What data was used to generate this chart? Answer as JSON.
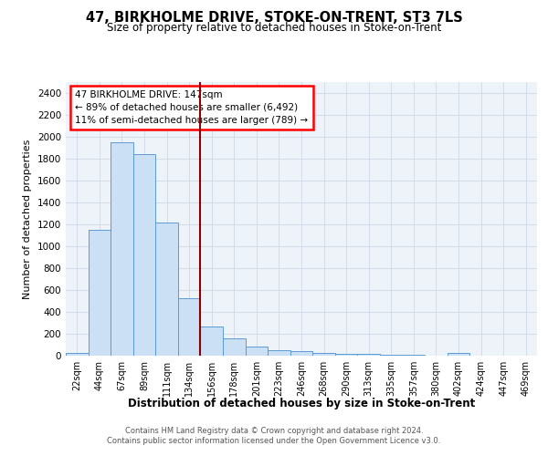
{
  "title": "47, BIRKHOLME DRIVE, STOKE-ON-TRENT, ST3 7LS",
  "subtitle": "Size of property relative to detached houses in Stoke-on-Trent",
  "xlabel": "Distribution of detached houses by size in Stoke-on-Trent",
  "ylabel": "Number of detached properties",
  "footnote1": "Contains HM Land Registry data © Crown copyright and database right 2024.",
  "footnote2": "Contains public sector information licensed under the Open Government Licence v3.0.",
  "bar_labels": [
    "22sqm",
    "44sqm",
    "67sqm",
    "89sqm",
    "111sqm",
    "134sqm",
    "156sqm",
    "178sqm",
    "201sqm",
    "223sqm",
    "246sqm",
    "268sqm",
    "290sqm",
    "313sqm",
    "335sqm",
    "357sqm",
    "380sqm",
    "402sqm",
    "424sqm",
    "447sqm",
    "469sqm"
  ],
  "bar_values": [
    25,
    1150,
    1950,
    1840,
    1220,
    525,
    265,
    155,
    80,
    50,
    40,
    25,
    18,
    15,
    5,
    8,
    3,
    22,
    0,
    0,
    0
  ],
  "bar_color": "#cce0f5",
  "bar_edge_color": "#5b9bd5",
  "vline_x": 5.5,
  "vline_color": "#8b0000",
  "ylim": [
    0,
    2500
  ],
  "yticks": [
    0,
    200,
    400,
    600,
    800,
    1000,
    1200,
    1400,
    1600,
    1800,
    2000,
    2200,
    2400
  ],
  "annotation_title": "47 BIRKHOLME DRIVE: 147sqm",
  "annotation_line1": "← 89% of detached houses are smaller (6,492)",
  "annotation_line2": "11% of semi-detached houses are larger (789) →",
  "bg_color": "#eef2f9",
  "grid_color": "#d0d8e8"
}
